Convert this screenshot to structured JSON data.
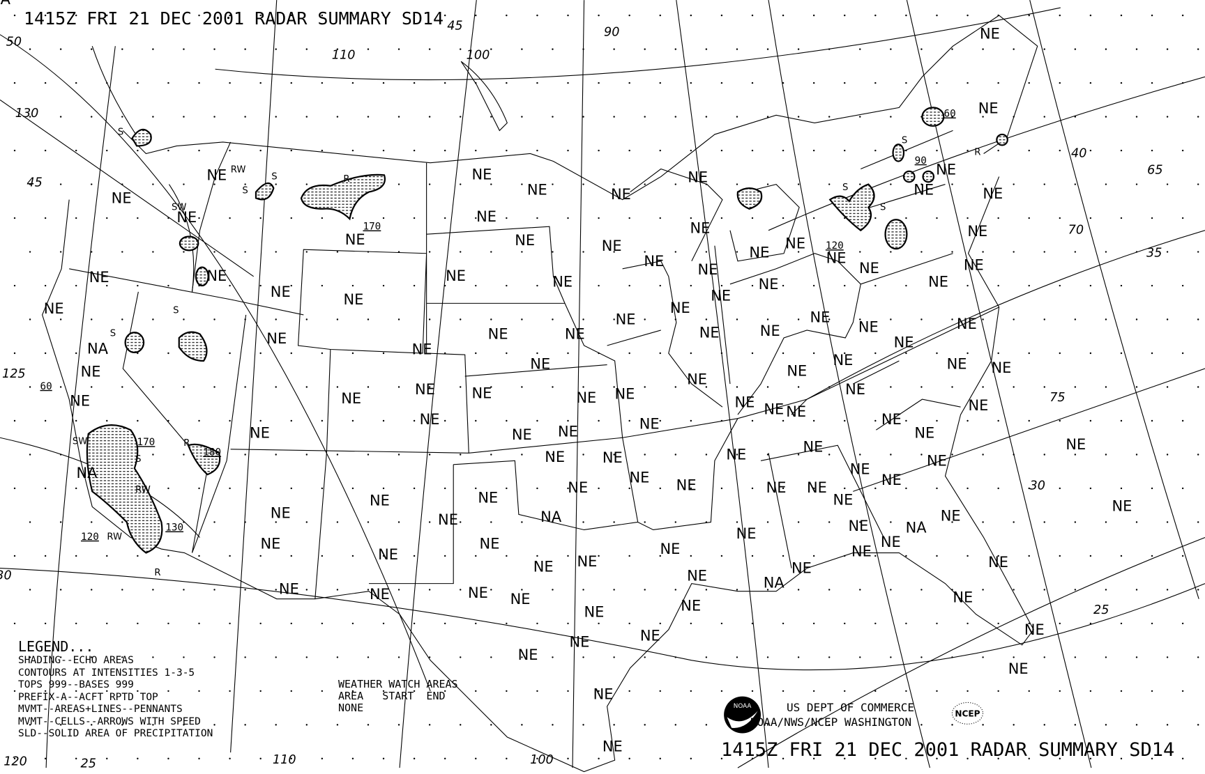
{
  "header": {
    "title": "1415Z FRI 21 DEC 2001 RADAR SUMMARY SD14"
  },
  "footer": {
    "title": "1415Z FRI 21 DEC 2001 RADAR SUMMARY SD14",
    "agency_line1": "US DEPT OF COMMERCE",
    "agency_line2": "NOAA/NWS/NCEP WASHINGTON",
    "noaa_logo_text": "NOAA",
    "ncep_logo_text": "NCEP"
  },
  "legend": {
    "title": "LEGEND...",
    "lines": [
      "SHADING--ECHO AREAS",
      "CONTOURS AT INTENSITIES 1-3-5",
      "TOPS 999--BASES 999",
      "PREFIX-A--ACFT RPTD TOP",
      "MVMT--AREAS+LINES--PENNANTS",
      "MVMT--CELLS--ARROWS WITH SPEED",
      "SLD--SOLID AREA OF PRECIPITATION"
    ]
  },
  "watch": {
    "title": "WEATHER WATCH AREAS",
    "columns": "AREA   START  END",
    "value": "NONE"
  },
  "colors": {
    "ink": "#000000",
    "background": "#ffffff"
  },
  "region_labels": [
    "NE",
    "NE",
    "NE",
    "NE",
    "NE",
    "NE",
    "NE",
    "NE",
    "NE",
    "NE",
    "NE",
    "NE",
    "NE",
    "NE",
    "NE",
    "NE",
    "NE",
    "NE",
    "NE",
    "NE",
    "NE",
    "NE",
    "NE",
    "NE",
    "NE",
    "NE",
    "NE",
    "NE",
    "NE",
    "NE",
    "NE",
    "NE",
    "NE",
    "NE",
    "NE",
    "NE",
    "NE",
    "NE",
    "NE",
    "NE",
    "NE",
    "NE",
    "NE",
    "NE",
    "NE",
    "NE",
    "NE",
    "NE",
    "NE",
    "NE",
    "NE",
    "NE",
    "NE",
    "NE",
    "NE",
    "NE",
    "NE",
    "NE",
    "NE",
    "NE",
    "NE",
    "NE",
    "NE",
    "NE",
    "NE",
    "NE",
    "NE",
    "NE",
    "NE",
    "NE",
    "NE",
    "NE",
    "NE",
    "NE",
    "NE",
    "NE",
    "NE",
    "NE",
    "NE",
    "NE",
    "NE",
    "NE",
    "NE",
    "NE",
    "NE",
    "NE",
    "NE",
    "NE",
    "NE",
    "NE",
    "NE",
    "NE",
    "NE",
    "NE",
    "NE",
    "NE",
    "NE",
    "NE",
    "NE",
    "NE",
    "NE",
    "NE",
    "NE",
    "NE",
    "NE",
    "NE",
    "NE",
    "NE",
    "NE",
    "NE",
    "NE",
    "NE",
    "NE",
    "NE",
    "NE",
    "NE",
    "NE",
    "NE",
    "NE",
    "NA",
    "NA",
    "NA",
    "NA",
    "NA",
    "NA"
  ],
  "echo_labels": [
    "S",
    "S",
    "S",
    "R",
    "R",
    "S",
    "SW",
    "S",
    "RW",
    "S",
    "R",
    "S",
    "SW",
    "S",
    "RW",
    "RW",
    "R",
    "S"
  ],
  "tops": [
    "60",
    "90",
    "120",
    "170",
    "180",
    "170",
    "130",
    "120",
    "60"
  ],
  "graticule_labels": [
    "50",
    "130",
    "45",
    "125",
    "120",
    "25",
    "110",
    "100",
    "90",
    "45",
    "40",
    "65",
    "70",
    "35",
    "75",
    "30",
    "25",
    "110",
    "100",
    "30"
  ]
}
